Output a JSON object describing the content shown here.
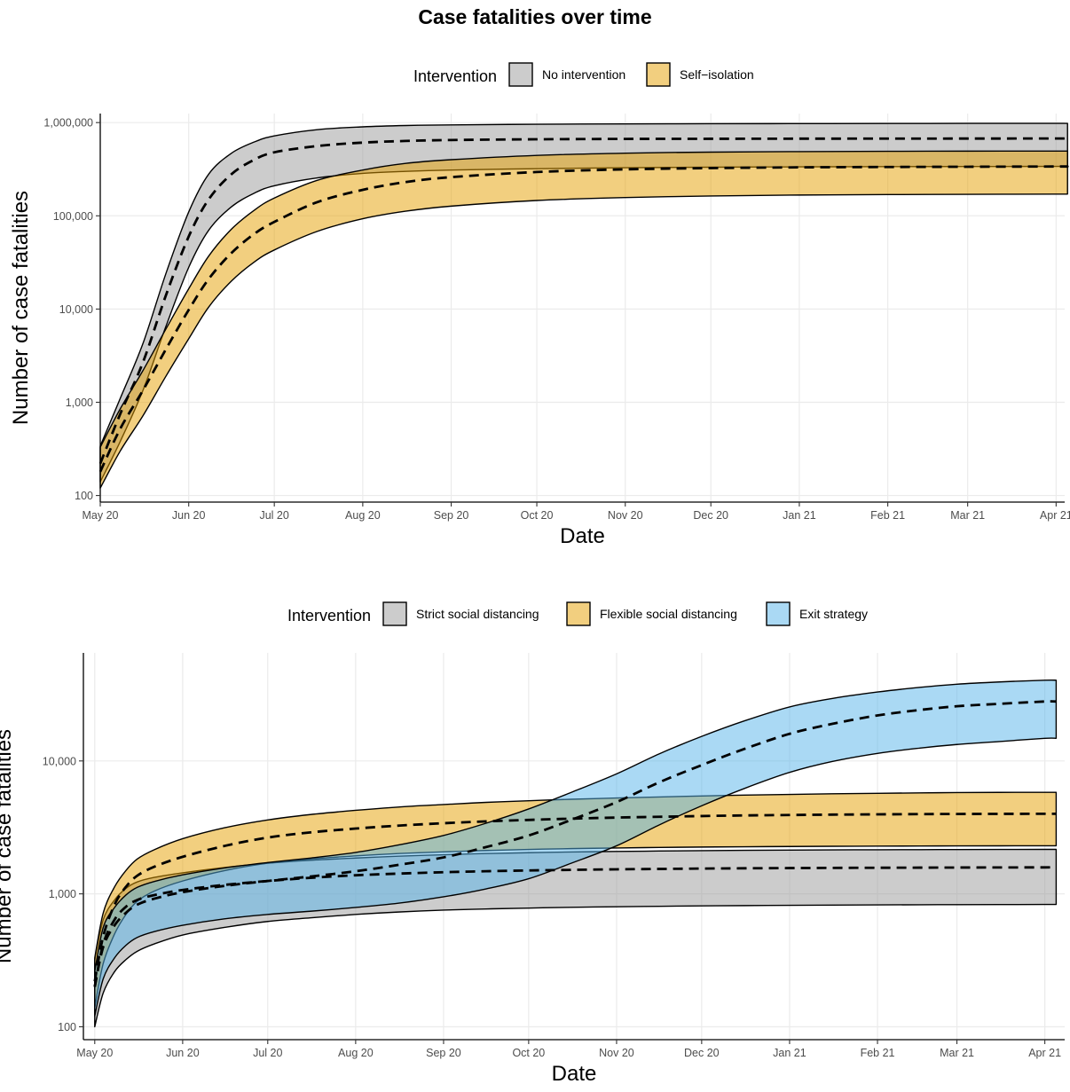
{
  "title": "Case fatalities over time",
  "chart_data": [
    {
      "type": "area",
      "title": "Case fatalities over time",
      "xlabel": "Date",
      "ylabel": "Number of case fatalities",
      "y_scale": "log",
      "ylim": [
        85,
        1250000
      ],
      "xlim": [
        "2020-05-01",
        "2021-04-04"
      ],
      "x_ticks": [
        "May 20",
        "Jun 20",
        "Jul 20",
        "Aug 20",
        "Sep 20",
        "Oct 20",
        "Nov 20",
        "Dec 20",
        "Jan 21",
        "Feb 21",
        "Mar 21",
        "Apr 21"
      ],
      "y_ticks": [
        "100",
        "1,000",
        "10,000",
        "100,000",
        "1,000,000"
      ],
      "legend_title": "Intervention",
      "legend_position": "top",
      "grid": true,
      "x": [
        "2020-05-01",
        "2020-05-08",
        "2020-05-16",
        "2020-05-24",
        "2020-06-01",
        "2020-06-08",
        "2020-06-16",
        "2020-06-24",
        "2020-07-01",
        "2020-07-16",
        "2020-08-01",
        "2020-08-16",
        "2020-09-01",
        "2020-10-01",
        "2020-11-01",
        "2020-12-01",
        "2021-01-01",
        "2021-02-01",
        "2021-03-01",
        "2021-04-01",
        "2021-04-05"
      ],
      "series": [
        {
          "name": "No intervention",
          "color": "#999999",
          "lower": [
            140,
            380,
            1350,
            6500,
            28000,
            70000,
            125000,
            175000,
            210000,
            255000,
            285000,
            300000,
            310000,
            320000,
            328000,
            332000,
            335000,
            337000,
            338000,
            339000,
            340000
          ],
          "mid": [
            220,
            750,
            2700,
            14000,
            60000,
            150000,
            280000,
            400000,
            480000,
            560000,
            610000,
            635000,
            650000,
            662000,
            668000,
            670000,
            672000,
            673000,
            674000,
            675000,
            675000
          ],
          "upper": [
            340,
            1100,
            4300,
            24000,
            110000,
            280000,
            470000,
            620000,
            720000,
            840000,
            900000,
            930000,
            945000,
            960000,
            968000,
            972000,
            975000,
            978000,
            980000,
            980000,
            980000
          ]
        },
        {
          "name": "Self−isolation",
          "color": "#E69F00",
          "lower": [
            120,
            300,
            720,
            1900,
            4800,
            10500,
            20000,
            32000,
            43000,
            68000,
            93000,
            112000,
            127000,
            146000,
            157000,
            163000,
            167000,
            169000,
            170000,
            171000,
            171000
          ],
          "mid": [
            180,
            520,
            1350,
            3700,
            9800,
            21000,
            40000,
            64000,
            86000,
            140000,
            190000,
            230000,
            260000,
            295000,
            315000,
            325000,
            331000,
            334000,
            336000,
            338000,
            338000
          ],
          "upper": [
            330,
            850,
            2200,
            6100,
            16500,
            37000,
            72000,
            115000,
            155000,
            240000,
            310000,
            365000,
            400000,
            445000,
            470000,
            482000,
            488000,
            492000,
            494000,
            495000,
            495000
          ]
        }
      ]
    },
    {
      "type": "area",
      "xlabel": "Date",
      "ylabel": "Number of case fatalities",
      "y_scale": "log",
      "ylim": [
        80,
        65000
      ],
      "xlim": [
        "2020-04-27",
        "2021-04-08"
      ],
      "x_ticks": [
        "May 20",
        "Jun 20",
        "Jul 20",
        "Aug 20",
        "Sep 20",
        "Oct 20",
        "Nov 20",
        "Dec 20",
        "Jan 21",
        "Feb 21",
        "Mar 21",
        "Apr 21"
      ],
      "y_ticks": [
        "100",
        "1,000",
        "10,000"
      ],
      "legend_title": "Intervention",
      "legend_position": "top",
      "grid": true,
      "x": [
        "2020-05-01",
        "2020-05-04",
        "2020-05-08",
        "2020-05-12",
        "2020-05-16",
        "2020-05-22",
        "2020-06-01",
        "2020-06-16",
        "2020-07-01",
        "2020-07-16",
        "2020-08-01",
        "2020-08-16",
        "2020-09-01",
        "2020-09-16",
        "2020-10-01",
        "2020-10-16",
        "2020-11-01",
        "2020-11-16",
        "2020-12-01",
        "2020-12-16",
        "2021-01-01",
        "2021-01-16",
        "2021-02-01",
        "2021-02-16",
        "2021-03-01",
        "2021-03-16",
        "2021-04-01",
        "2021-04-05"
      ],
      "series": [
        {
          "name": "Strict social distancing",
          "color": "#999999",
          "lower": [
            100,
            180,
            260,
            320,
            370,
            420,
            490,
            560,
            620,
            660,
            700,
            730,
            755,
            770,
            782,
            792,
            800,
            806,
            812,
            816,
            820,
            823,
            826,
            828,
            830,
            831,
            832,
            832
          ],
          "mid": [
            200,
            420,
            640,
            800,
            900,
            980,
            1070,
            1170,
            1250,
            1320,
            1380,
            1420,
            1455,
            1480,
            1500,
            1515,
            1530,
            1540,
            1550,
            1557,
            1563,
            1568,
            1572,
            1575,
            1578,
            1580,
            1582,
            1582
          ],
          "upper": [
            320,
            640,
            900,
            1100,
            1230,
            1330,
            1440,
            1580,
            1700,
            1790,
            1860,
            1920,
            1970,
            2010,
            2040,
            2065,
            2085,
            2100,
            2115,
            2125,
            2135,
            2142,
            2148,
            2152,
            2156,
            2159,
            2161,
            2161
          ]
        },
        {
          "name": "Flexible social distancing",
          "color": "#E69F00",
          "lower": [
            140,
            300,
            500,
            700,
            880,
            1050,
            1250,
            1500,
            1700,
            1830,
            1930,
            2010,
            2070,
            2120,
            2160,
            2190,
            2215,
            2235,
            2250,
            2262,
            2272,
            2280,
            2286,
            2291,
            2295,
            2298,
            2300,
            2300
          ],
          "mid": [
            220,
            480,
            830,
            1130,
            1370,
            1600,
            1900,
            2300,
            2650,
            2900,
            3100,
            3260,
            3400,
            3510,
            3600,
            3680,
            3750,
            3800,
            3850,
            3890,
            3920,
            3945,
            3965,
            3980,
            3990,
            3998,
            4003,
            4003
          ],
          "upper": [
            330,
            720,
            1130,
            1500,
            1830,
            2150,
            2600,
            3150,
            3600,
            3950,
            4250,
            4500,
            4700,
            4880,
            5020,
            5150,
            5260,
            5360,
            5450,
            5530,
            5600,
            5660,
            5710,
            5750,
            5780,
            5800,
            5810,
            5810
          ]
        },
        {
          "name": "Exit strategy",
          "color": "#56B4E9",
          "lower": [
            120,
            230,
            330,
            410,
            470,
            520,
            580,
            650,
            700,
            740,
            790,
            850,
            950,
            1090,
            1300,
            1700,
            2300,
            3300,
            4600,
            6200,
            8200,
            9900,
            11400,
            12500,
            13300,
            14000,
            14800,
            14800
          ],
          "mid": [
            200,
            400,
            580,
            720,
            830,
            920,
            1030,
            1150,
            1250,
            1350,
            1480,
            1650,
            1880,
            2250,
            2750,
            3600,
            4900,
            6900,
            9300,
            12300,
            16000,
            19000,
            22000,
            24200,
            25800,
            26900,
            28000,
            28000
          ],
          "upper": [
            260,
            560,
            790,
            980,
            1120,
            1240,
            1390,
            1570,
            1720,
            1860,
            2050,
            2330,
            2750,
            3400,
            4350,
            5800,
            8000,
            11300,
            15300,
            20000,
            25500,
            29500,
            33000,
            35800,
            37800,
            39300,
            40500,
            40500
          ]
        }
      ]
    }
  ]
}
